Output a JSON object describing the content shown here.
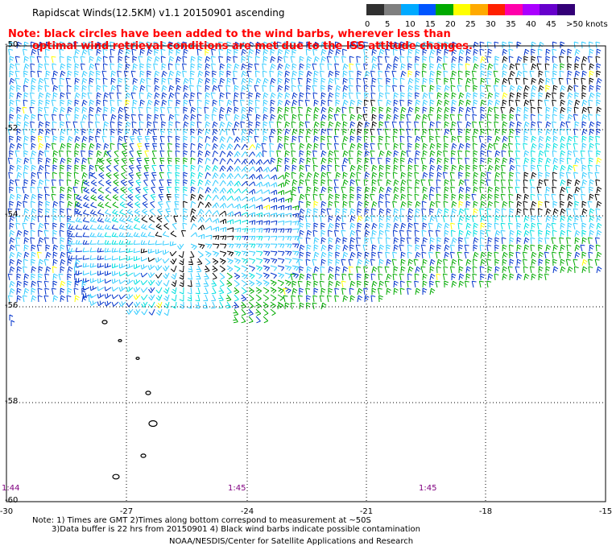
{
  "header": {
    "title": "Rapidscat Winds(12.5KM) v1.1 20150901 ascending",
    "note_line1": "Note: black circles have been added to the wind barbs, wherever less than",
    "note_line2": "optimal wind retrieval conditions are met due to the ISS attitude changes."
  },
  "legend": {
    "labels": [
      "0",
      "5",
      "10",
      "15",
      "20",
      "25",
      "30",
      "35",
      "40",
      "45",
      ">50 knots"
    ],
    "colors": [
      "#303030",
      "#7f7f7f",
      "#00aaff",
      "#0055ff",
      "#00aa00",
      "#ffff00",
      "#ffaa00",
      "#ff2000",
      "#ff00aa",
      "#aa00ff",
      "#6600cc",
      "#330077"
    ]
  },
  "map": {
    "lat_labels": [
      "-50",
      "-52",
      "-54",
      "-56",
      "-58",
      "-60"
    ],
    "lon_labels": [
      "-30",
      "-27",
      "-24",
      "-21",
      "-18",
      "-15"
    ],
    "time_labels": [
      "1:44",
      "1:45",
      "1:45"
    ],
    "barb_colors": {
      "light": "#33ccff",
      "cyan": "#00e0e0",
      "blue": "#0033cc",
      "green": "#00aa00",
      "black": "#000000",
      "yellow": "#ffff00"
    }
  },
  "footer": {
    "line1": "Note: 1) Times are GMT 2)Times along bottom correspond to measurement at ~50S",
    "line2": "3)Data buffer is 22 hrs from 20150901 4) Black wind barbs indicate possible contamination",
    "credit": "NOAA/NESDIS/Center for Satellite Applications and Research"
  }
}
